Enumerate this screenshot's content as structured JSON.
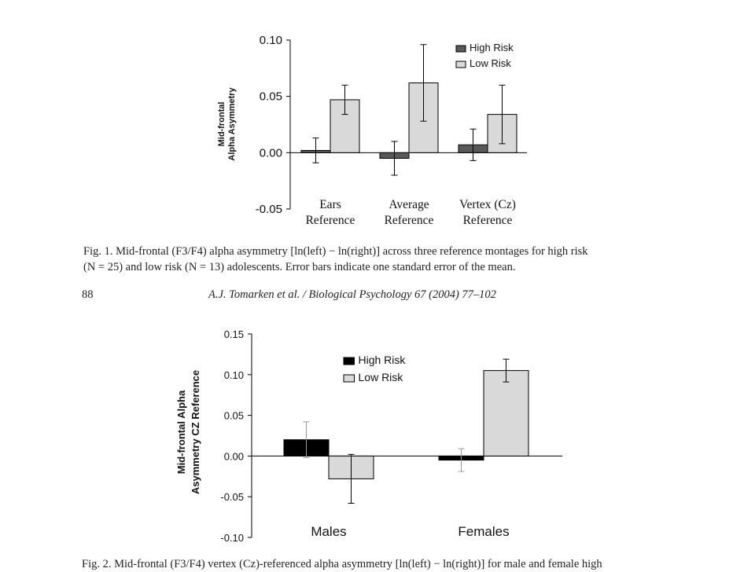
{
  "chart_data": [
    {
      "type": "bar",
      "ylabel_lines": [
        "Mid-frontal",
        "Alpha Asymmetry"
      ],
      "categories": [
        [
          "Ears",
          "Reference"
        ],
        [
          "Average",
          "Reference"
        ],
        [
          "Vertex (Cz)",
          "Reference"
        ]
      ],
      "series": [
        {
          "name": "High Risk",
          "color": "#595959",
          "values": [
            0.002,
            -0.005,
            0.007
          ],
          "errors": [
            0.011,
            0.015,
            0.014
          ]
        },
        {
          "name": "Low Risk",
          "color": "#d9d9d9",
          "values": [
            0.047,
            0.062,
            0.034
          ],
          "errors": [
            0.013,
            0.034,
            0.026
          ]
        }
      ],
      "ylim": [
        -0.05,
        0.1
      ],
      "yticks": [
        "0.10",
        "0.05",
        "0.00",
        "-0.05"
      ],
      "ytick_values": [
        0.1,
        0.05,
        0.0,
        -0.05
      ],
      "legend_position": "top-right",
      "grid": false
    },
    {
      "type": "bar",
      "ylabel_lines": [
        "Mid-frontal Alpha",
        "Asymmetry CZ Reference"
      ],
      "categories": [
        "Males",
        "Females"
      ],
      "series": [
        {
          "name": "High Risk",
          "color": "#000000",
          "values": [
            0.02,
            -0.005
          ],
          "errors": [
            0.022,
            0.014
          ]
        },
        {
          "name": "Low Risk",
          "color": "#d9d9d9",
          "values": [
            -0.028,
            0.105
          ],
          "errors": [
            0.03,
            0.014
          ]
        }
      ],
      "ylim": [
        -0.1,
        0.15
      ],
      "yticks": [
        "0.15",
        "0.10",
        "0.05",
        "0.00",
        "-0.05",
        "-0.10"
      ],
      "ytick_values": [
        0.15,
        0.1,
        0.05,
        0.0,
        -0.05,
        -0.1
      ],
      "legend_position": "top-center",
      "grid": false
    }
  ],
  "captions": {
    "fig1_line1": "Fig. 1. Mid-frontal (F3/F4) alpha asymmetry [ln(left) − ln(right)] across three reference montages for high risk",
    "fig1_line2": "(N = 25) and low risk (N = 13) adolescents. Error bars indicate one standard error of the mean.",
    "page_number": "88",
    "running_head": "A.J. Tomarken et al. / Biological Psychology 67 (2004) 77–102",
    "fig2_line1": "Fig. 2. Mid-frontal (F3/F4) vertex (Cz)-referenced alpha asymmetry [ln(left) − ln(right)] for male and female high"
  }
}
